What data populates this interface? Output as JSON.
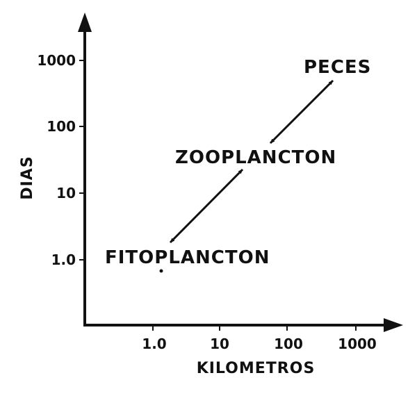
{
  "diagram": {
    "x_axis": {
      "title": "KILOMETROS",
      "scale": "log",
      "ticks": [
        "1.0",
        "10",
        "100",
        "1000"
      ]
    },
    "y_axis": {
      "title": "DIAS",
      "scale": "log",
      "ticks": [
        "1000",
        "100",
        "10",
        "1.0"
      ]
    },
    "nodes": [
      {
        "id": "fitoplancton",
        "label": "FITOPLANCTON",
        "km": 1.4,
        "days": 0.75
      },
      {
        "id": "zooplancton",
        "label": "ZOOPLANCTON",
        "km": 50,
        "days": 25
      },
      {
        "id": "peces",
        "label": "PECES",
        "km": 450,
        "days": 1000
      }
    ],
    "links": [
      {
        "from": "fitoplancton",
        "to": "zooplancton",
        "direction": "both"
      },
      {
        "from": "zooplancton",
        "to": "peces",
        "direction": "both"
      }
    ],
    "colors": {
      "ink": "#111111",
      "background": "#ffffff"
    }
  }
}
